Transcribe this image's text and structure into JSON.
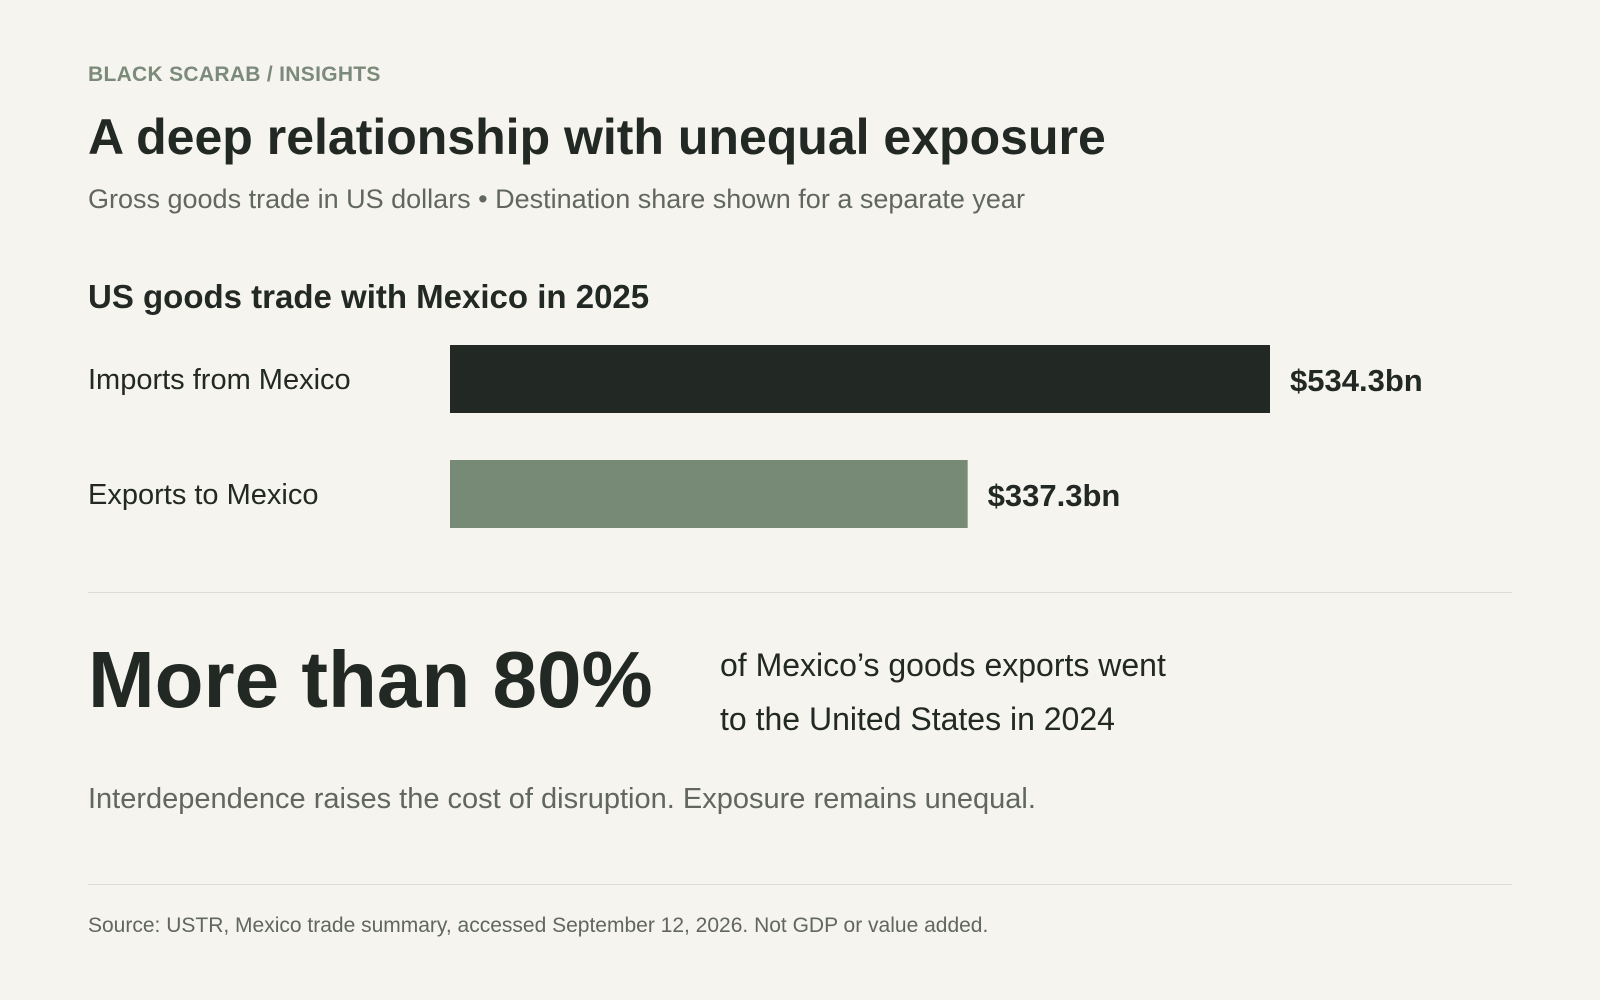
{
  "header": {
    "eyebrow": "BLACK SCARAB / INSIGHTS",
    "title": "A deep relationship with unequal exposure",
    "subtitle": "Gross goods trade in US dollars • Destination share shown for a separate year"
  },
  "chart_data": {
    "type": "bar",
    "orientation": "horizontal",
    "title": "US goods trade with Mexico in 2025",
    "categories": [
      "Imports from Mexico",
      "Exports to Mexico"
    ],
    "values": [
      534.3,
      337.3
    ],
    "value_labels": [
      "$534.3bn",
      "$337.3bn"
    ],
    "colors": [
      "#222823",
      "#768a76"
    ],
    "xlim": [
      0,
      534.3
    ],
    "grid": false,
    "legend": "none"
  },
  "stat": {
    "headline": "More than 80%",
    "description_line1": "of Mexico’s goods exports went",
    "description_line2": "to the United States in 2024"
  },
  "takeaway": "Interdependence raises the cost of disruption. Exposure remains unequal.",
  "source": "Source: USTR, Mexico trade summary, accessed September 12, 2026. Not GDP or value added."
}
